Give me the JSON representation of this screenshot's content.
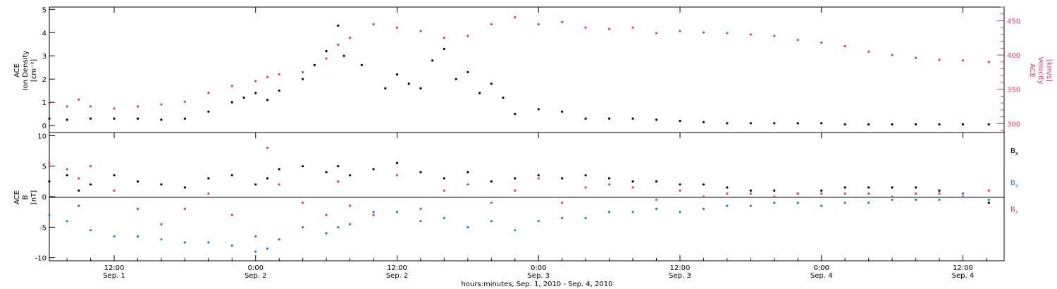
{
  "colors": {
    "black": "#000000",
    "pink": "#e8386a",
    "blue": "#1a7fd6"
  },
  "panel_top": {
    "left_ylabel_lines": [
      "ACE",
      "Ion Density",
      "[cm⁻³]"
    ],
    "right_ylabel_lines": [
      "ACE",
      "Velocity",
      "[km/s]"
    ],
    "left_ticks": [
      "0",
      "1",
      "2",
      "3",
      "4",
      "5"
    ],
    "right_ticks": [
      "300",
      "350",
      "400",
      "450"
    ]
  },
  "panel_bottom": {
    "ylabel_lines": [
      "ACE",
      "B",
      "[nT]"
    ],
    "ticks": [
      "-10",
      "-5",
      "0",
      "5",
      "10"
    ],
    "legend": [
      "Bx",
      "By",
      "Bz"
    ]
  },
  "xaxis": {
    "ticks": [
      {
        "time": "12:00",
        "day": "Sep. 1"
      },
      {
        "time": "0:00",
        "day": "Sep. 2"
      },
      {
        "time": "12:00",
        "day": "Sep. 2"
      },
      {
        "time": "0:00",
        "day": "Sep. 3"
      },
      {
        "time": "12:00",
        "day": "Sep. 3"
      },
      {
        "time": "0:00",
        "day": "Sep. 4"
      },
      {
        "time": "12:00",
        "day": "Sep. 4"
      }
    ],
    "label": "hours:minutes, Sep. 1, 2010 - Sep. 4, 2010"
  },
  "chart_data": [
    {
      "type": "scatter",
      "panel": "plasma",
      "xlabel": "hours:minutes, Sep. 1, 2010 - Sep. 4, 2010",
      "x_units": "hours since 2010-09-01 00:00 UT",
      "xlim": [
        6.5,
        87.5
      ],
      "series": [
        {
          "name": "Ion Density",
          "axis": "left",
          "ylim": [
            -0.3,
            5.1
          ],
          "x": [
            6.5,
            8,
            10,
            12,
            14,
            16,
            18,
            20,
            22,
            23,
            24,
            25,
            26,
            28,
            29,
            30,
            31,
            31.5,
            33,
            35,
            36,
            37,
            38,
            39,
            40,
            41,
            42,
            43,
            44,
            45,
            46,
            48,
            50,
            52,
            54,
            56,
            58,
            60,
            62,
            64,
            66,
            68,
            70,
            72,
            74,
            76,
            78,
            80,
            82,
            84,
            86.2
          ],
          "values": [
            0.3,
            0.25,
            0.3,
            0.3,
            0.3,
            0.25,
            0.3,
            0.6,
            1.0,
            1.2,
            1.4,
            1.1,
            1.5,
            2.0,
            2.6,
            3.2,
            4.3,
            3.0,
            2.6,
            1.6,
            2.2,
            1.8,
            1.6,
            2.8,
            3.3,
            2.0,
            2.3,
            1.4,
            1.8,
            1.2,
            0.5,
            0.7,
            0.6,
            0.3,
            0.3,
            0.3,
            0.25,
            0.2,
            0.15,
            0.1,
            0.1,
            0.1,
            0.1,
            0.1,
            0.05,
            0.05,
            0.05,
            0.05,
            0.05,
            0.05,
            0.05
          ]
        },
        {
          "name": "Velocity",
          "axis": "right",
          "ylim": [
            287,
            470
          ],
          "x": [
            6.5,
            8,
            9,
            10,
            12,
            14,
            16,
            18,
            20,
            22,
            24,
            25,
            26,
            28,
            30,
            31,
            32,
            34,
            36,
            38,
            40,
            42,
            44,
            46,
            48,
            50,
            52,
            54,
            56,
            58,
            60,
            62,
            64,
            66,
            68,
            70,
            72,
            74,
            76,
            78,
            80,
            82,
            84,
            86.2
          ],
          "values": [
            330,
            325,
            335,
            325,
            322,
            325,
            328,
            332,
            345,
            355,
            362,
            368,
            372,
            375,
            395,
            415,
            425,
            445,
            440,
            435,
            425,
            428,
            445,
            455,
            445,
            448,
            440,
            438,
            440,
            432,
            435,
            433,
            432,
            430,
            428,
            422,
            418,
            413,
            405,
            400,
            396,
            393,
            392,
            390
          ]
        }
      ]
    },
    {
      "type": "scatter",
      "panel": "magnetic field",
      "ylabel": "B [nT]",
      "xlim": [
        6.5,
        87.5
      ],
      "ylim": [
        -10.5,
        10.5
      ],
      "x": [
        6.5,
        8,
        9,
        10,
        12,
        14,
        16,
        18,
        20,
        22,
        24,
        25,
        26,
        28,
        30,
        31,
        32,
        34,
        36,
        38,
        40,
        42,
        44,
        46,
        48,
        50,
        52,
        54,
        56,
        58,
        60,
        62,
        64,
        66,
        68,
        70,
        72,
        74,
        76,
        78,
        80,
        82,
        84,
        86.2
      ],
      "series": [
        {
          "name": "Bx",
          "values": [
            2.5,
            3.5,
            1.0,
            2.0,
            3.5,
            2.5,
            2.0,
            1.5,
            3.0,
            3.5,
            2.0,
            3.0,
            4.5,
            5.0,
            4.0,
            5.0,
            3.5,
            4.5,
            5.5,
            4.0,
            3.0,
            4.0,
            2.5,
            3.0,
            3.5,
            3.0,
            3.5,
            3.0,
            2.5,
            2.5,
            2.0,
            2.0,
            1.5,
            1.0,
            1.0,
            0.5,
            1.0,
            1.5,
            1.5,
            1.5,
            1.5,
            1.0,
            0.5,
            -1.0
          ]
        },
        {
          "name": "By",
          "values": [
            -3.0,
            -4.0,
            -1.5,
            -5.5,
            -6.5,
            -6.5,
            -7.0,
            -7.5,
            -7.5,
            -8.0,
            -9.0,
            -8.5,
            -7.0,
            -5.0,
            -6.0,
            -5.0,
            -4.5,
            -2.5,
            -2.5,
            -4.0,
            -3.5,
            -5.0,
            -4.0,
            -5.5,
            -4.0,
            -3.5,
            -3.5,
            -2.5,
            -2.5,
            -2.0,
            -2.5,
            -2.0,
            -1.5,
            -1.5,
            -1.0,
            -1.0,
            -1.5,
            -1.0,
            -1.0,
            -0.5,
            -0.5,
            -0.5,
            0.0,
            -0.5
          ]
        },
        {
          "name": "Bz",
          "values": [
            5.5,
            4.5,
            3.0,
            5.0,
            1.0,
            -2.0,
            -4.5,
            -2.0,
            0.5,
            -3.0,
            -6.5,
            8.0,
            2.0,
            -1.0,
            -3.0,
            2.5,
            -1.5,
            -3.0,
            3.5,
            -2.0,
            1.0,
            2.0,
            -1.0,
            1.0,
            3.0,
            -1.0,
            1.5,
            2.0,
            1.5,
            -0.5,
            1.0,
            0.0,
            0.5,
            0.5,
            0.0,
            0.5,
            0.5,
            0.5,
            0.5,
            0.0,
            0.5,
            0.5,
            0.5,
            1.0
          ]
        }
      ]
    }
  ]
}
